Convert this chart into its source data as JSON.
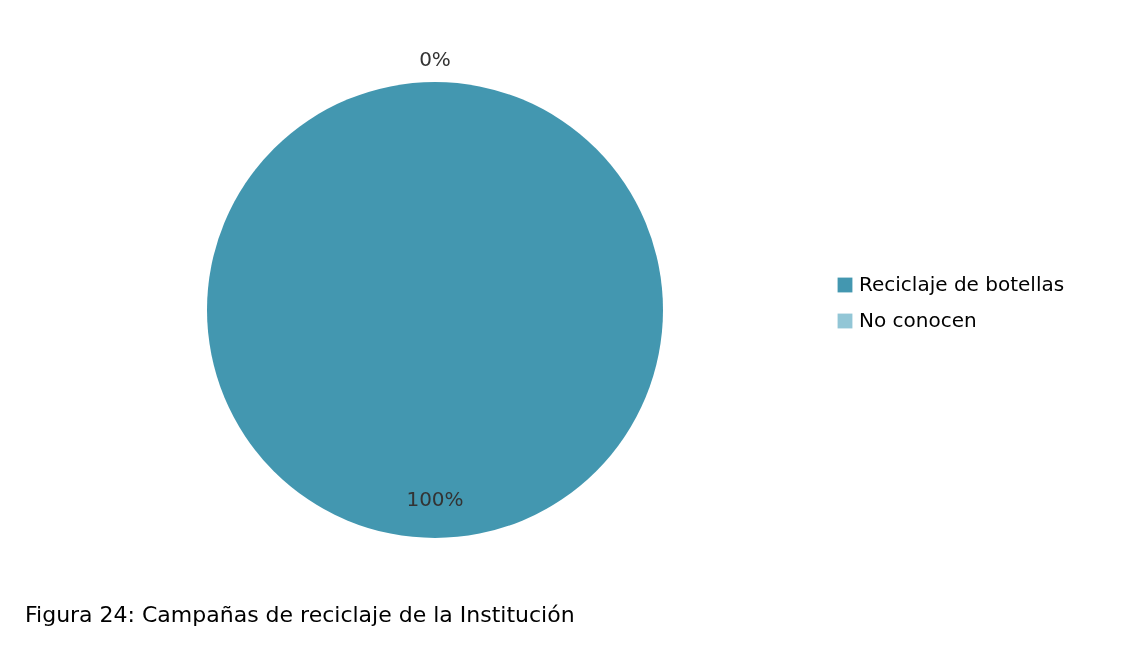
{
  "chart_data": {
    "type": "pie",
    "categories": [
      "Reciclaje de botellas",
      "No conocen"
    ],
    "values": [
      100,
      0
    ],
    "colors": [
      "#4397b0",
      "#92c6d6"
    ],
    "value_labels": [
      "100%",
      "0%"
    ],
    "legend": "right",
    "annotations": [
      "Figura 24: Campañas de reciclaje de la Institución"
    ]
  }
}
